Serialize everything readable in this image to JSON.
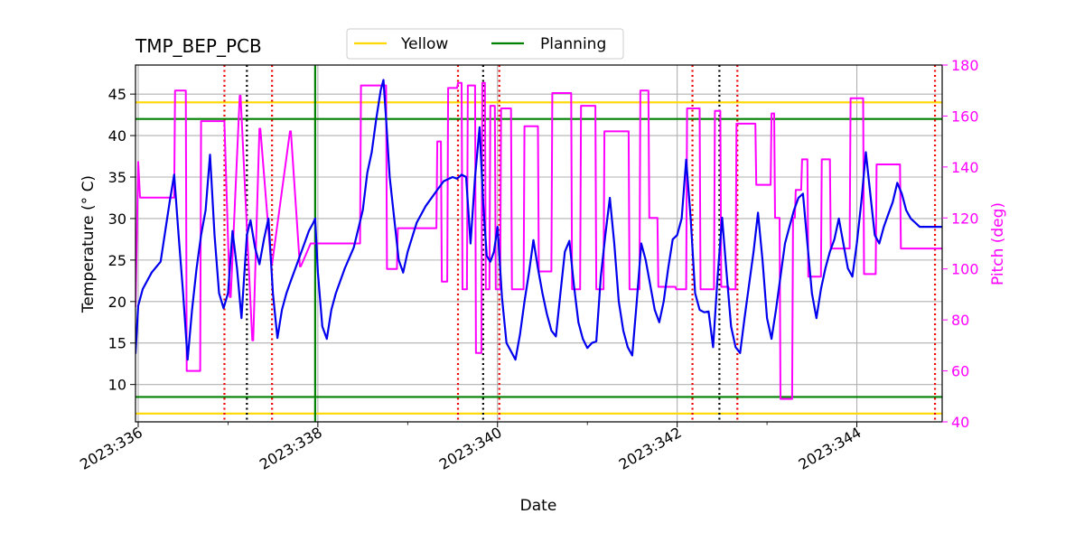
{
  "chart_data": {
    "type": "line",
    "title": "TMP_BEP_PCB",
    "xlabel": "Date",
    "ylabel": "Temperature ($^\\circ$C)",
    "ylabel_display": "Temperature (° C)",
    "y2label": "Pitch (deg)",
    "xlim": [
      335.97,
      344.95
    ],
    "ylim": [
      5.5,
      48.5
    ],
    "y2lim": [
      40,
      180
    ],
    "x_ticks": [
      336,
      338,
      340,
      342,
      344
    ],
    "x_tick_labels": [
      "2023:336",
      "2023:338",
      "2023:340",
      "2023:342",
      "2023:344"
    ],
    "x_minor_ticks": [
      337,
      339,
      341,
      343
    ],
    "y_ticks": [
      10,
      15,
      20,
      25,
      30,
      35,
      40,
      45
    ],
    "y_tick_labels": [
      "10",
      "15",
      "20",
      "25",
      "30",
      "35",
      "40",
      "45"
    ],
    "y2_ticks": [
      40,
      60,
      80,
      100,
      120,
      140,
      160,
      180
    ],
    "y2_tick_labels": [
      "40",
      "60",
      "80",
      "100",
      "120",
      "140",
      "160",
      "180"
    ],
    "grid": true,
    "legend": {
      "position": "top-center",
      "entries": [
        {
          "label": "Yellow",
          "color": "#ffd700"
        },
        {
          "label": "Planning",
          "color": "#008000"
        }
      ]
    },
    "limits": {
      "yellow": [
        6.5,
        44.0
      ],
      "planning": [
        8.5,
        42.0
      ]
    },
    "colors": {
      "temperature": "#0000ee",
      "pitch": "#ff00ff",
      "yellow": "#ffd700",
      "planning": "#008000",
      "red_markers": "#ee0000",
      "black_markers": "#000000",
      "grid": "#b0b0b0"
    },
    "vertical_markers": {
      "green_solid": [
        337.97
      ],
      "red_dotted": [
        336.96,
        337.49,
        339.56,
        340.02,
        342.17,
        342.67,
        344.87
      ],
      "black_dotted": [
        337.21,
        339.84,
        342.47
      ]
    },
    "series": [
      {
        "name": "Temperature",
        "axis": "left",
        "x": [
          335.97,
          336.0,
          336.05,
          336.15,
          336.25,
          336.35,
          336.4,
          336.45,
          336.5,
          336.55,
          336.6,
          336.65,
          336.7,
          336.75,
          336.8,
          336.85,
          336.9,
          336.95,
          337.0,
          337.05,
          337.1,
          337.15,
          337.18,
          337.21,
          337.25,
          337.3,
          337.35,
          337.4,
          337.45,
          337.5,
          337.55,
          337.6,
          337.65,
          337.7,
          337.75,
          337.8,
          337.85,
          337.9,
          337.95,
          337.97,
          338.0,
          338.05,
          338.1,
          338.15,
          338.2,
          338.3,
          338.4,
          338.5,
          338.55,
          338.6,
          338.65,
          338.7,
          338.73,
          338.76,
          338.8,
          338.85,
          338.9,
          338.95,
          339.0,
          339.1,
          339.2,
          339.3,
          339.4,
          339.5,
          339.55,
          339.6,
          339.65,
          339.7,
          339.75,
          339.8,
          339.84,
          339.88,
          339.92,
          339.96,
          340.0,
          340.05,
          340.1,
          340.15,
          340.2,
          340.25,
          340.3,
          340.35,
          340.4,
          340.45,
          340.5,
          340.55,
          340.6,
          340.65,
          340.7,
          340.75,
          340.8,
          340.85,
          340.9,
          340.95,
          341.0,
          341.05,
          341.1,
          341.15,
          341.2,
          341.25,
          341.3,
          341.35,
          341.4,
          341.45,
          341.5,
          341.55,
          341.6,
          341.65,
          341.7,
          341.75,
          341.8,
          341.85,
          341.9,
          341.95,
          342.0,
          342.05,
          342.1,
          342.15,
          342.2,
          342.25,
          342.3,
          342.35,
          342.4,
          342.45,
          342.5,
          342.55,
          342.6,
          342.65,
          342.7,
          342.75,
          342.8,
          342.85,
          342.9,
          342.95,
          343.0,
          343.05,
          343.1,
          343.15,
          343.2,
          343.25,
          343.3,
          343.35,
          343.4,
          343.45,
          343.5,
          343.55,
          343.6,
          343.65,
          343.7,
          343.75,
          343.8,
          343.85,
          343.9,
          343.95,
          344.0,
          344.05,
          344.1,
          344.15,
          344.2,
          344.25,
          344.3,
          344.35,
          344.4,
          344.45,
          344.5,
          344.55,
          344.6,
          344.65,
          344.7,
          344.75,
          344.8,
          344.85,
          344.9,
          344.95
        ],
        "values": [
          13.7,
          19.5,
          21.5,
          23.5,
          24.8,
          32.0,
          35.3,
          28.0,
          21.0,
          13.0,
          19.0,
          24.0,
          28.0,
          31.0,
          37.7,
          28.0,
          21.0,
          19.2,
          21.0,
          28.5,
          24.0,
          18.0,
          23.0,
          28.0,
          29.8,
          26.5,
          24.5,
          27.5,
          30.0,
          21.0,
          15.6,
          19.0,
          21.0,
          22.5,
          24.0,
          25.5,
          27.0,
          28.5,
          29.5,
          30.0,
          23.5,
          17.0,
          15.5,
          19.0,
          21.0,
          24.0,
          26.5,
          31.0,
          35.5,
          38.0,
          42.0,
          45.5,
          46.7,
          42.0,
          35.0,
          30.0,
          25.0,
          23.5,
          26.0,
          29.5,
          31.5,
          33.0,
          34.5,
          35.0,
          34.8,
          35.3,
          35.0,
          27.0,
          35.0,
          41.0,
          32.0,
          25.5,
          24.8,
          26.0,
          29.0,
          20.5,
          15.0,
          14.0,
          13.0,
          16.0,
          20.0,
          23.5,
          27.4,
          24.0,
          21.0,
          18.5,
          16.5,
          15.8,
          21.0,
          26.0,
          27.3,
          22.0,
          17.5,
          15.5,
          14.4,
          15.0,
          15.2,
          23.0,
          28.0,
          32.5,
          27.0,
          20.0,
          16.5,
          14.5,
          13.5,
          20.0,
          27.0,
          25.0,
          22.0,
          19.0,
          17.5,
          20.0,
          24.0,
          27.5,
          28.0,
          30.0,
          37.1,
          30.0,
          21.0,
          19.0,
          18.7,
          18.8,
          14.5,
          23.0,
          30.1,
          23.5,
          17.0,
          14.5,
          13.8,
          18.0,
          22.0,
          26.0,
          30.7,
          25.0,
          18.0,
          15.5,
          19.0,
          23.0,
          27.0,
          29.0,
          31.0,
          32.5,
          33.0,
          27.0,
          21.0,
          18.0,
          21.5,
          24.0,
          26.0,
          27.5,
          30.0,
          27.0,
          24.0,
          23.0,
          27.0,
          32.0,
          38.0,
          33.0,
          28.0,
          27.0,
          29.0,
          30.5,
          32.0,
          34.3,
          33.0,
          31.0,
          30.0,
          29.5,
          29.0,
          29.0,
          29.0,
          29.0,
          29.0,
          29.0
        ],
        "color": "#0000ee"
      },
      {
        "name": "Pitch",
        "axis": "right",
        "x": [
          335.97,
          336.0,
          336.02,
          336.05,
          336.06,
          336.4,
          336.41,
          336.53,
          336.54,
          336.69,
          336.7,
          336.95,
          336.96,
          337.02,
          337.03,
          337.13,
          337.14,
          337.27,
          337.28,
          337.35,
          337.36,
          337.48,
          337.49,
          337.69,
          337.7,
          337.8,
          337.81,
          337.92,
          337.93,
          338.1,
          338.11,
          338.47,
          338.48,
          338.76,
          338.77,
          338.88,
          338.89,
          339.32,
          339.33,
          339.37,
          339.38,
          339.44,
          339.45,
          339.55,
          339.56,
          339.6,
          339.61,
          339.66,
          339.67,
          339.75,
          339.76,
          339.82,
          339.83,
          339.86,
          339.87,
          339.91,
          339.92,
          339.97,
          339.98,
          340.03,
          340.04,
          340.15,
          340.16,
          340.29,
          340.3,
          340.45,
          340.46,
          340.6,
          340.61,
          340.82,
          340.83,
          340.92,
          340.93,
          341.09,
          341.1,
          341.18,
          341.19,
          341.46,
          341.47,
          341.58,
          341.59,
          341.68,
          341.69,
          341.78,
          341.79,
          341.98,
          341.99,
          342.1,
          342.11,
          342.25,
          342.26,
          342.41,
          342.42,
          342.48,
          342.49,
          342.57,
          342.58,
          342.65,
          342.66,
          342.87,
          342.88,
          343.04,
          343.05,
          343.08,
          343.09,
          343.14,
          343.15,
          343.28,
          343.29,
          343.31,
          343.32,
          343.38,
          343.39,
          343.45,
          343.46,
          343.6,
          343.61,
          343.7,
          343.71,
          343.92,
          343.93,
          344.07,
          344.08,
          344.21,
          344.22,
          344.48,
          344.49,
          344.59,
          344.6,
          344.68,
          344.69,
          344.76,
          344.77,
          344.85,
          344.86,
          344.92,
          344.93,
          344.95
        ],
        "values": [
          85,
          142,
          128,
          128,
          128,
          128,
          170,
          170,
          60,
          60,
          158,
          158,
          158,
          89,
          89,
          168,
          168,
          72,
          72,
          155,
          155,
          102,
          102,
          154,
          154,
          101,
          101,
          110,
          110,
          110,
          110,
          110,
          172,
          172,
          100,
          100,
          116,
          116,
          150,
          150,
          95,
          95,
          171,
          171,
          173,
          173,
          92,
          92,
          172,
          172,
          67,
          67,
          173,
          173,
          92,
          92,
          164,
          164,
          92,
          92,
          163,
          163,
          92,
          92,
          156,
          156,
          99,
          99,
          169,
          169,
          92,
          92,
          164,
          164,
          92,
          92,
          154,
          154,
          92,
          92,
          170,
          170,
          120,
          120,
          93,
          93,
          92,
          92,
          163,
          163,
          92,
          92,
          162,
          162,
          93,
          93,
          92,
          92,
          157,
          157,
          133,
          133,
          161,
          161,
          120,
          120,
          49,
          49,
          120,
          120,
          131,
          131,
          143,
          143,
          97,
          97,
          143,
          143,
          108,
          108,
          167,
          167,
          98,
          98,
          141,
          141,
          108,
          108,
          108,
          108,
          108,
          108,
          108,
          108,
          108,
          108,
          108,
          108
        ],
        "color": "#ff00ff"
      }
    ]
  }
}
